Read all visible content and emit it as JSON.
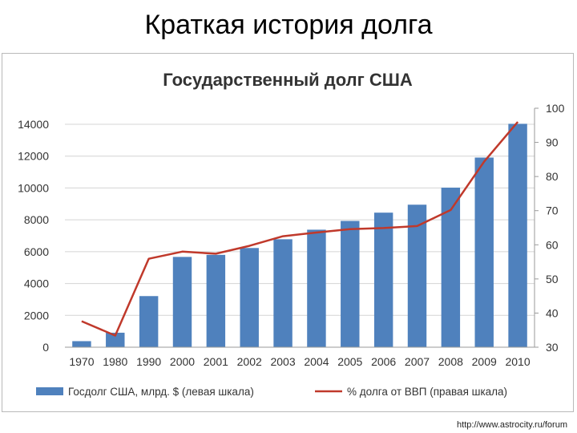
{
  "slide": {
    "title": "Краткая история долга"
  },
  "source": "http://www.astrocity.ru/forum",
  "colors": {
    "bars": "#4f81bd",
    "line": "#c0392b",
    "grid": "#d4d4d4",
    "text": "#333333"
  },
  "chart_data": {
    "type": "bar",
    "title": "Государственный долг США",
    "categories": [
      "1970",
      "1980",
      "1990",
      "2000",
      "2001",
      "2002",
      "2003",
      "2004",
      "2005",
      "2006",
      "2007",
      "2008",
      "2009",
      "2010"
    ],
    "series": [
      {
        "name": "Госдолг США, млрд. $ (левая шкала)",
        "type": "bar",
        "axis": "left",
        "values": [
          380,
          910,
          3210,
          5670,
          5800,
          6230,
          6780,
          7380,
          7930,
          8450,
          8950,
          10020,
          11910,
          14030
        ]
      },
      {
        "name": "% долга от ВВП (правая шкала)",
        "type": "line",
        "axis": "right",
        "values": [
          37.6,
          33.4,
          55.9,
          58.0,
          57.4,
          59.7,
          62.5,
          63.6,
          64.6,
          64.9,
          65.5,
          70.2,
          84.4,
          96.0
        ]
      }
    ],
    "yleft": {
      "ylim": [
        0,
        14000
      ],
      "ticks": [
        0,
        2000,
        4000,
        6000,
        8000,
        10000,
        12000,
        14000
      ]
    },
    "yright": {
      "ylim": [
        30,
        100
      ],
      "ticks": [
        30,
        40,
        50,
        60,
        70,
        80,
        90,
        100
      ]
    },
    "grid": true,
    "legend": "bottom"
  }
}
